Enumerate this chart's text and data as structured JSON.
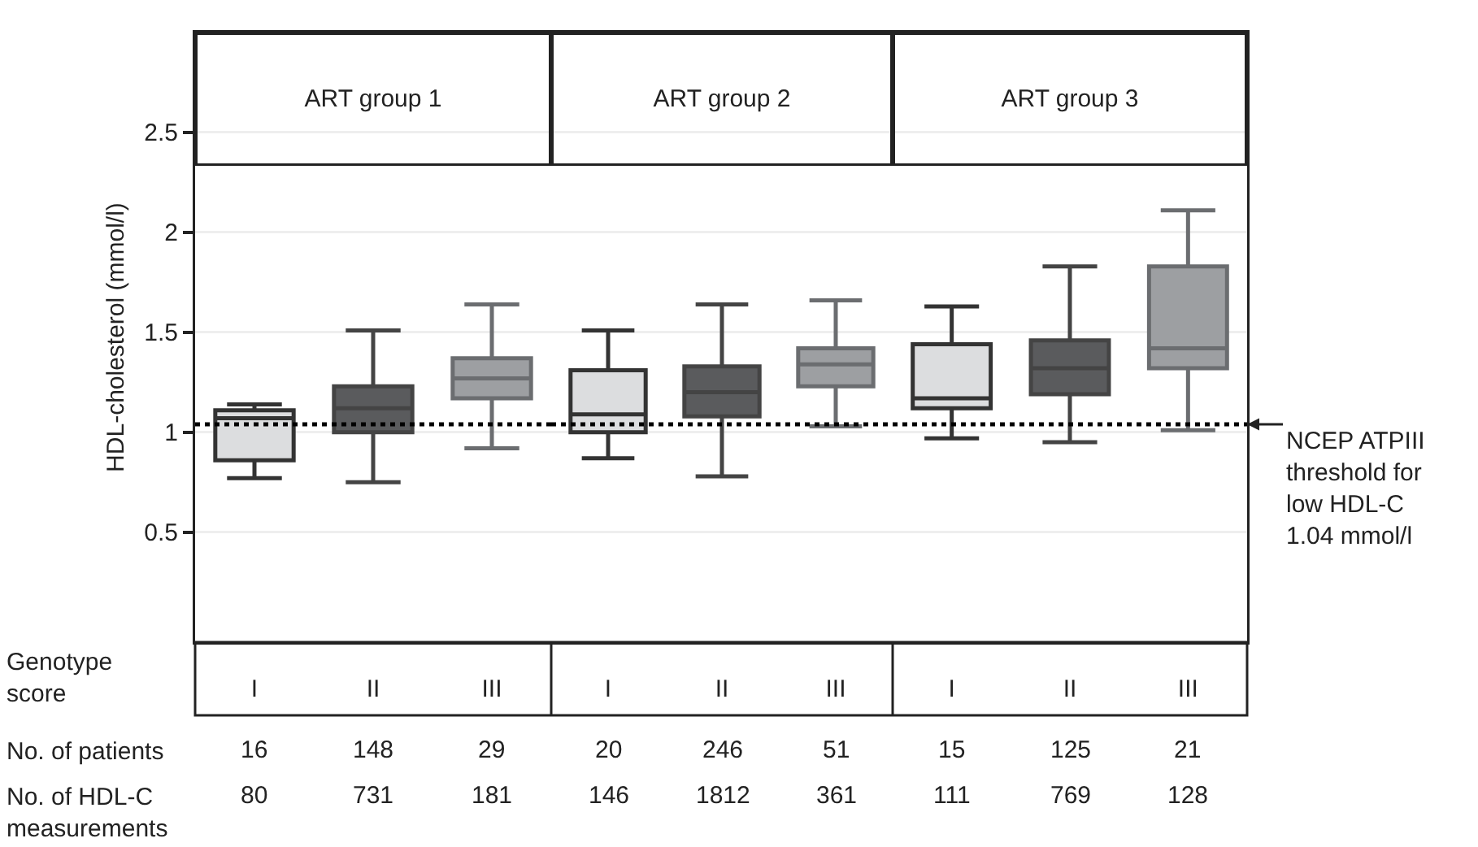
{
  "chart_data": [
    {
      "type": "box",
      "title": "ART group 1",
      "ylabel": "HDL-cholesterol (mmol/l)",
      "xlabel": "Genotype score",
      "categories": [
        "I",
        "II",
        "III"
      ],
      "colors": [
        "#dcdddf",
        "#5a5b5d",
        "#9d9fa2"
      ],
      "boxes": [
        {
          "low": 0.77,
          "q1": 0.86,
          "median": 1.07,
          "q3": 1.11,
          "high": 1.14
        },
        {
          "low": 0.75,
          "q1": 1.0,
          "median": 1.12,
          "q3": 1.23,
          "high": 1.51
        },
        {
          "low": 0.92,
          "q1": 1.17,
          "median": 1.27,
          "q3": 1.37,
          "high": 1.64
        }
      ],
      "ylim": [
        -0.05,
        3
      ],
      "yticks": [
        0.5,
        1,
        1.5,
        2,
        2.5
      ],
      "grid": "y",
      "ref_lines": [
        {
          "axis": "y",
          "value": 1.04,
          "label": null,
          "color": "#000000",
          "line_style": "dotted"
        }
      ],
      "annotations": [
        "No. of patients",
        "No. of HDL-C\nmeasurements",
        "16",
        "148",
        "29",
        "80",
        "731",
        "181"
      ]
    },
    {
      "type": "box",
      "title": "ART group 2",
      "categories": [
        "I",
        "II",
        "III"
      ],
      "colors": [
        "#dcdddf",
        "#5a5b5d",
        "#9d9fa2"
      ],
      "boxes": [
        {
          "low": 0.87,
          "q1": 1.0,
          "median": 1.09,
          "q3": 1.31,
          "high": 1.51
        },
        {
          "low": 0.78,
          "q1": 1.08,
          "median": 1.2,
          "q3": 1.33,
          "high": 1.64
        },
        {
          "low": 1.03,
          "q1": 1.23,
          "median": 1.34,
          "q3": 1.42,
          "high": 1.66
        }
      ],
      "ylim": [
        -0.05,
        3
      ],
      "yticks": [
        0.5,
        1,
        1.5,
        2,
        2.5
      ],
      "tick_labels": "x",
      "grid": "y",
      "ref_lines": [
        {
          "axis": "y",
          "value": 1.04,
          "label": null,
          "color": "#000000",
          "line_style": "dotted"
        }
      ],
      "annotations": [
        "20",
        "246",
        "51",
        "146",
        "1812",
        "361"
      ]
    },
    {
      "type": "box",
      "title": "ART group 3",
      "categories": [
        "I",
        "II",
        "III"
      ],
      "colors": [
        "#dcdddf",
        "#5a5b5d",
        "#9d9fa2"
      ],
      "boxes": [
        {
          "low": 0.97,
          "q1": 1.12,
          "median": 1.17,
          "q3": 1.44,
          "high": 1.63
        },
        {
          "low": 0.95,
          "q1": 1.19,
          "median": 1.32,
          "q3": 1.46,
          "high": 1.83
        },
        {
          "low": 1.01,
          "q1": 1.32,
          "median": 1.42,
          "q3": 1.83,
          "high": 2.11
        }
      ],
      "ylim": [
        -0.05,
        3
      ],
      "yticks": [
        0.5,
        1,
        1.5,
        2,
        2.5
      ],
      "tick_labels": "x",
      "grid": "y",
      "ref_lines": [
        {
          "axis": "y",
          "value": 1.04,
          "label": "NCEP ATPIII\nthreshold for\nlow HDL-C\n1.04 mmol/l",
          "color": "#000000",
          "line_style": "dotted"
        }
      ],
      "annotations": [
        "15",
        "125",
        "21",
        "111",
        "769",
        "128"
      ]
    }
  ]
}
